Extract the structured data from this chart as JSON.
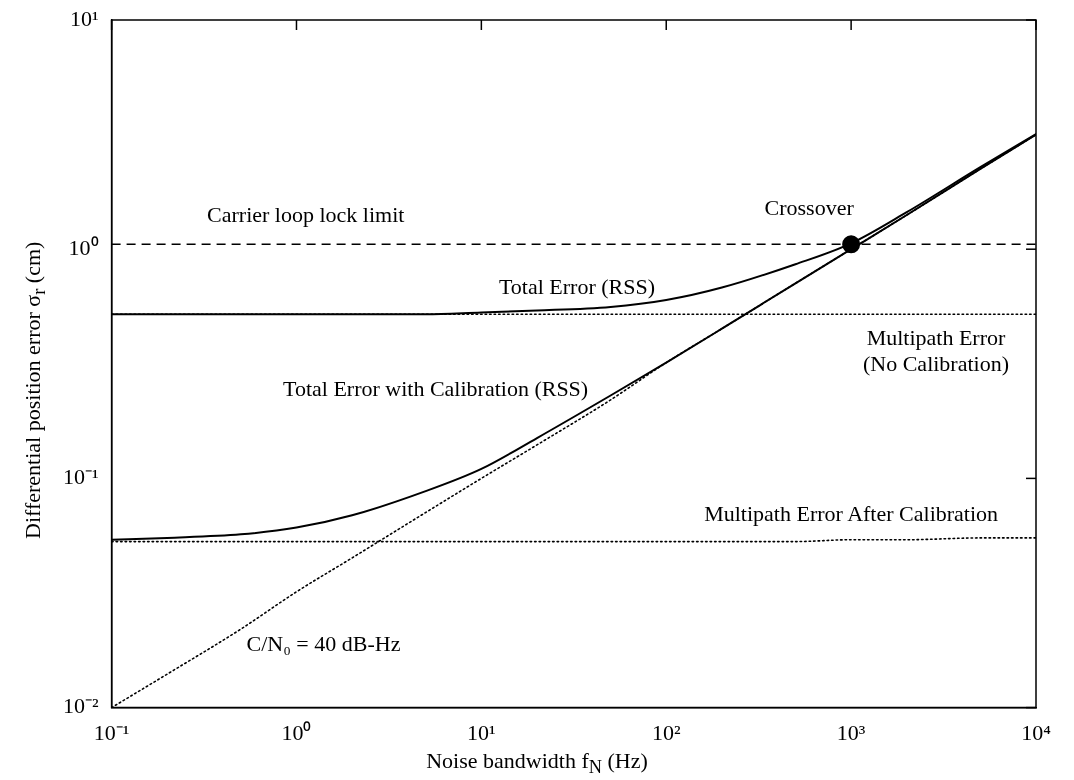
{
  "chart_data": {
    "type": "line",
    "xlabel": "Noise bandwidth f$_{N}$ (Hz)",
    "ylabel": "Differential position error σ$_{r}$ (cm)",
    "log": "xy",
    "grid": false,
    "legend": false,
    "marker": "none",
    "xlim": [
      0.1,
      10000
    ],
    "ylim": [
      0.01,
      10
    ],
    "xticks": [
      {
        "value": 0.1,
        "label": "10⁻¹"
      },
      {
        "value": 1,
        "label": "10⁰"
      },
      {
        "value": 10,
        "label": "10¹"
      },
      {
        "value": 100,
        "label": "10²"
      },
      {
        "value": 1000,
        "label": "10³"
      },
      {
        "value": 10000,
        "label": "10⁴"
      }
    ],
    "yticks": [
      {
        "value": 0.01,
        "label": "10⁻²"
      },
      {
        "value": 0.1,
        "label": "10⁻¹"
      },
      {
        "value": 1,
        "label": "10⁰"
      },
      {
        "value": 10,
        "label": "10¹"
      }
    ],
    "x": [
      0.1,
      0.2,
      0.5,
      1,
      2,
      5,
      10,
      20,
      50,
      100,
      200,
      500,
      1000,
      2000,
      5000,
      10000
    ],
    "series": [
      {
        "name": "C/N₀ = 40 dB-Hz",
        "color": "#000000",
        "line_style": "dotted",
        "values": [
          0.01,
          0.014,
          0.022,
          0.032,
          0.045,
          0.071,
          0.1,
          0.14,
          0.22,
          0.32,
          0.45,
          0.71,
          1.0,
          1.41,
          2.24,
          3.16
        ]
      },
      {
        "name": "Multipath Error (No Calibration)",
        "color": "#000000",
        "line_style": "dotted",
        "values": [
          0.52,
          0.52,
          0.52,
          0.52,
          0.52,
          0.52,
          0.52,
          0.52,
          0.52,
          0.52,
          0.52,
          0.52,
          0.52,
          0.52,
          0.52,
          0.52
        ]
      },
      {
        "name": "Multipath Error After Calibration",
        "color": "#000000",
        "line_style": "dotted",
        "values": [
          0.053,
          0.053,
          0.053,
          0.053,
          0.053,
          0.053,
          0.053,
          0.053,
          0.053,
          0.053,
          0.053,
          0.053,
          0.054,
          0.054,
          0.055,
          0.055
        ]
      },
      {
        "name": "Total Error (RSS)",
        "color": "#000000",
        "line_style": "solid",
        "values": [
          0.52,
          0.52,
          0.52,
          0.52,
          0.52,
          0.52,
          0.53,
          0.54,
          0.56,
          0.6,
          0.68,
          0.86,
          1.06,
          1.45,
          2.28,
          3.18
        ]
      },
      {
        "name": "Total Error with Calibration (RSS)",
        "color": "#000000",
        "line_style": "solid",
        "values": [
          0.054,
          0.055,
          0.057,
          0.061,
          0.069,
          0.088,
          0.11,
          0.15,
          0.23,
          0.32,
          0.45,
          0.71,
          1.0,
          1.41,
          2.24,
          3.16
        ]
      },
      {
        "name": "Crossover",
        "type": "scatter",
        "marker": "circle",
        "color": "#000000",
        "x": [
          1000
        ],
        "values": [
          1.05
        ]
      }
    ],
    "ref_lines": [
      {
        "axis": "y",
        "value": 1.05,
        "label": "Carrier loop lock limit",
        "line_style": "dashed",
        "color": "#000000"
      }
    ]
  }
}
